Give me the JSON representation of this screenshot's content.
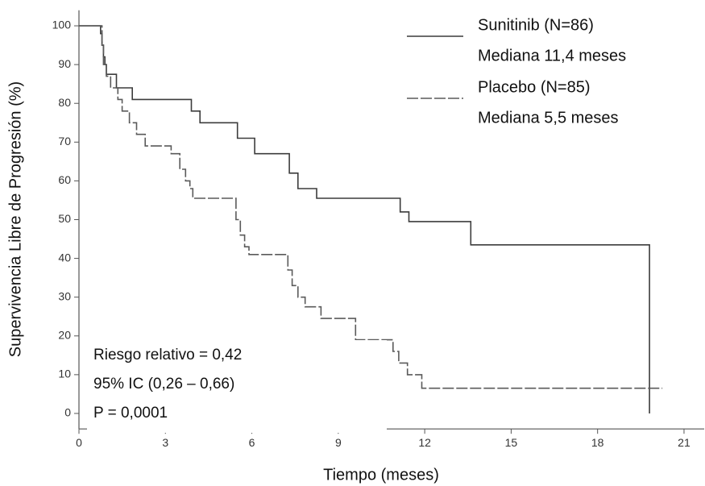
{
  "chart_data": {
    "type": "step",
    "y_label": "Supervivencia Libre de Progresión (%)",
    "x_label": "Tiempo (meses)",
    "xlim": [
      0,
      21.7
    ],
    "ylim": [
      -4,
      104
    ],
    "xticks": [
      0,
      3,
      6,
      9,
      12,
      15,
      18,
      21
    ],
    "yticks": [
      0,
      10,
      20,
      30,
      40,
      50,
      60,
      70,
      80,
      90,
      100
    ],
    "series": [
      {
        "name": "Sunitinib (N=86)",
        "median_label": "Mediana 11,4 meses",
        "color": "#3c3c3c",
        "dashed": false,
        "x": [
          0,
          0.75,
          0.75,
          0.8,
          0.8,
          0.85,
          0.85,
          0.9,
          0.9,
          0.95,
          0.95,
          1.3,
          1.3,
          1.85,
          1.85,
          3.9,
          3.9,
          4.2,
          4.2,
          5.5,
          5.5,
          6.1,
          6.1,
          7.3,
          7.3,
          7.6,
          7.6,
          8.25,
          8.25,
          11.15,
          11.15,
          11.45,
          11.45,
          13.6,
          13.6,
          19.8,
          19.8
        ],
        "values": [
          100,
          100,
          98,
          98,
          95,
          95,
          92,
          92,
          90,
          90,
          87.5,
          87.5,
          84,
          84,
          81,
          81,
          78,
          78,
          75,
          75,
          71,
          71,
          67,
          67,
          62,
          62,
          58,
          58,
          55.5,
          55.5,
          52,
          52,
          49.5,
          49.5,
          43.5,
          43.5,
          0
        ]
      },
      {
        "name": "Placebo (N=85)",
        "median_label": "Mediana 5,5 meses",
        "color": "#5a5a5a",
        "dashed": true,
        "x": [
          0,
          0.8,
          0.8,
          0.85,
          0.85,
          0.95,
          0.95,
          1.1,
          1.1,
          1.35,
          1.35,
          1.5,
          1.5,
          1.75,
          1.75,
          2.0,
          2.0,
          2.3,
          2.3,
          3.2,
          3.2,
          3.5,
          3.5,
          3.7,
          3.7,
          3.85,
          3.85,
          3.95,
          3.95,
          5.45,
          5.45,
          5.6,
          5.6,
          5.75,
          5.75,
          5.9,
          5.9,
          7.25,
          7.25,
          7.4,
          7.4,
          7.6,
          7.6,
          7.85,
          7.85,
          8.4,
          8.4,
          9.6,
          9.6,
          10.9,
          10.9,
          11.1,
          11.1,
          11.4,
          11.4,
          11.9,
          11.9,
          20.25
        ],
        "values": [
          100,
          100,
          95,
          95,
          90,
          90,
          87,
          87,
          84,
          84,
          81,
          81,
          78,
          78,
          75,
          75,
          72,
          72,
          69,
          69,
          67,
          67,
          63,
          63,
          60,
          60,
          58,
          58,
          55.5,
          55.5,
          50,
          50,
          46,
          46,
          43,
          43,
          41,
          41,
          37,
          37,
          33,
          33,
          30,
          30,
          27.5,
          27.5,
          24.5,
          24.5,
          19,
          19,
          16,
          16,
          13,
          13,
          10,
          10,
          6.5,
          6.5
        ]
      }
    ],
    "annotations": [
      "Riesgo relativo = 0,42",
      "95% IC (0,26 – 0,66)",
      "P = 0,0001"
    ]
  }
}
